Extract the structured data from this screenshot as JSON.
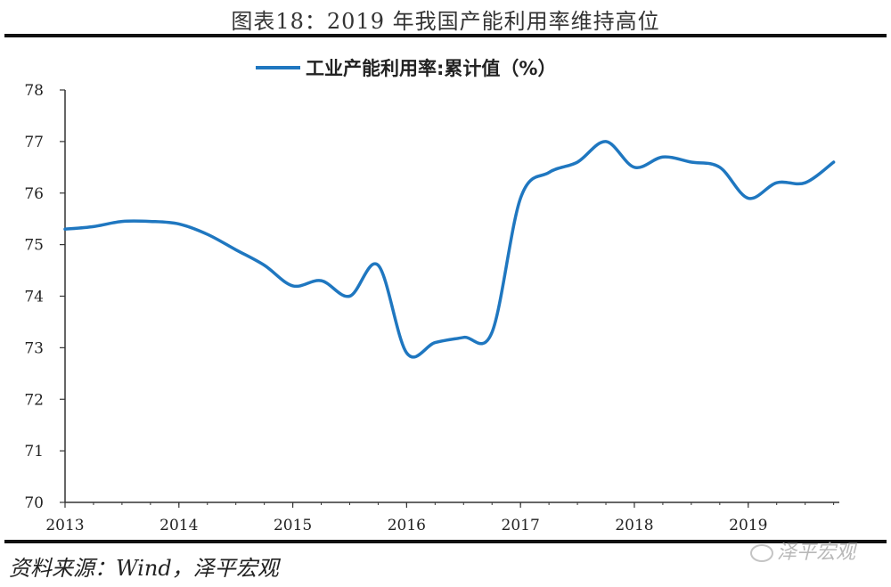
{
  "figure": {
    "title": "图表18：2019 年我国产能利用率维持高位",
    "source": "资料来源：Wind，泽平宏观",
    "watermark": "泽平宏观"
  },
  "colors": {
    "series": "#1f77c0",
    "axis": "#333333",
    "rule": "#111111"
  },
  "chart_data": {
    "type": "line",
    "xlabel": "",
    "ylabel": "",
    "ylim": [
      70,
      78
    ],
    "yticks": [
      70,
      71,
      72,
      73,
      74,
      75,
      76,
      77,
      78
    ],
    "xlim": [
      2013.0,
      2019.8
    ],
    "xticks": [
      "2013",
      "2014",
      "2015",
      "2016",
      "2017",
      "2018",
      "2019"
    ],
    "grid": false,
    "legend": "top-center",
    "series": [
      {
        "name": "工业产能利用率:累计值（%）",
        "x": [
          2013.0,
          2013.25,
          2013.5,
          2013.75,
          2014.0,
          2014.25,
          2014.5,
          2014.75,
          2015.0,
          2015.25,
          2015.5,
          2015.75,
          2016.0,
          2016.25,
          2016.5,
          2016.75,
          2017.0,
          2017.25,
          2017.5,
          2017.75,
          2018.0,
          2018.25,
          2018.5,
          2018.75,
          2019.0,
          2019.25,
          2019.5,
          2019.75
        ],
        "y": [
          75.3,
          75.35,
          75.45,
          75.45,
          75.4,
          75.2,
          74.9,
          74.6,
          74.2,
          74.3,
          74.0,
          74.6,
          72.9,
          73.1,
          73.2,
          73.3,
          75.9,
          76.4,
          76.6,
          77.0,
          76.5,
          76.7,
          76.6,
          76.5,
          75.9,
          76.2,
          76.2,
          76.6
        ]
      }
    ]
  }
}
